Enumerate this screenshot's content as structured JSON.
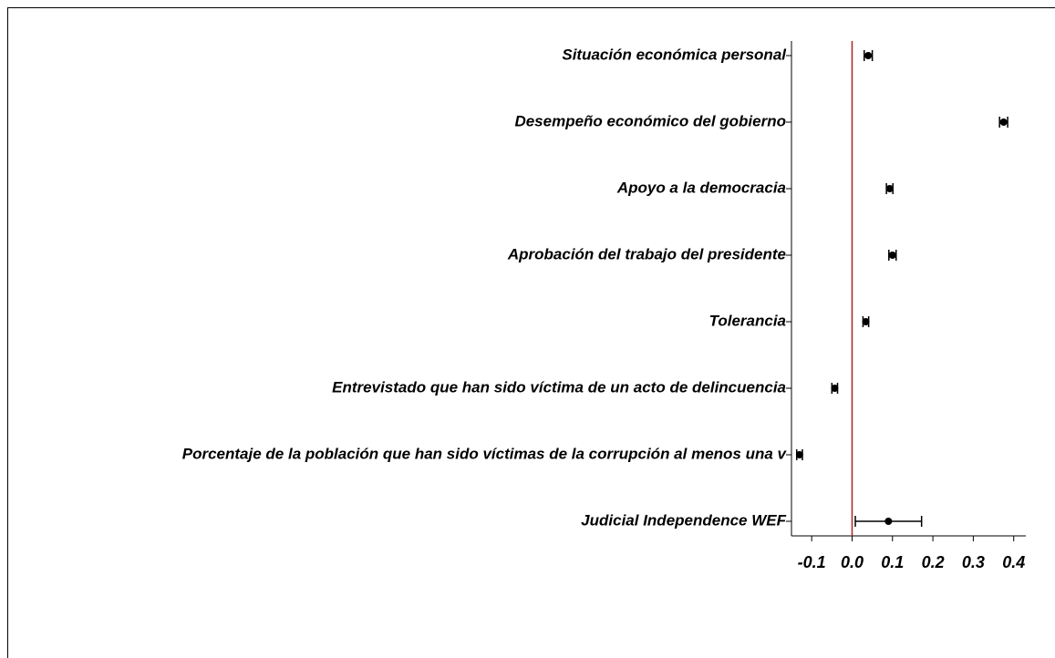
{
  "chart_data": {
    "type": "coefplot",
    "categories": [
      "Situación económica personal",
      "Desempeño económico del gobierno",
      "Apoyo a la democracia",
      "Aprobación del trabajo del presidente",
      "Tolerancia",
      "Entrevistado que han sido víctima de un acto de delincuencia",
      "Porcentaje de la población que han sido víctimas de la corrupción al menos una v",
      "Judicial Independence WEF"
    ],
    "values": [
      0.04,
      0.375,
      0.093,
      0.1,
      0.034,
      -0.043,
      -0.13,
      0.09
    ],
    "errors": [
      0.01,
      0.01,
      0.008,
      0.009,
      0.007,
      0.007,
      0.007,
      0.082
    ],
    "color": "#000000",
    "reference_line": 0,
    "reference_color": "#b22222",
    "xlim": [
      -0.15,
      0.43
    ],
    "xticks": [
      -0.1,
      {
        "value": 0,
        "label": "0.0"
      },
      0.1,
      0.2,
      0.3,
      0.4
    ]
  }
}
